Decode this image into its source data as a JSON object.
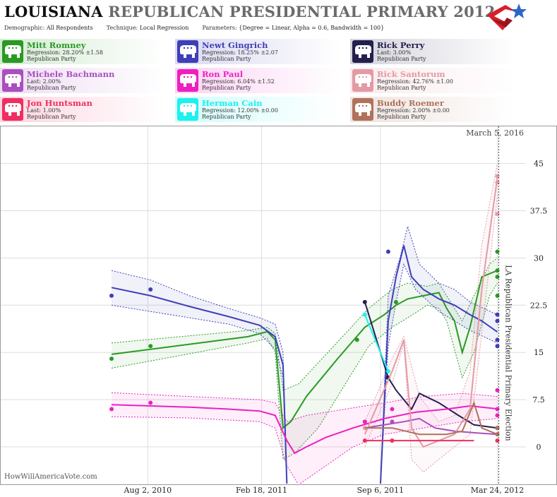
{
  "header": {
    "state": "LOUISIANA",
    "title_rest": "REPUBLICAN PRESIDENTIAL PRIMARY 2012",
    "demographic_label": "Demographic:",
    "demographic_value": "All Respondents",
    "technique_label": "Technique:",
    "technique_value": "Local Regression",
    "parameters_label": "Parameters:",
    "parameters_value": "{Degree = Linear, Alpha = 0.6, Bandwidth = 100}"
  },
  "candidates": [
    {
      "name": "Mitt Romney",
      "line2": "Regression: 28.20% ±1.58",
      "party": "Republican Party",
      "color": "#2a9a24"
    },
    {
      "name": "Newt Gingrich",
      "line2": "Regression: 18.25% ±2.07",
      "party": "Republican Party",
      "color": "#3f3fb8"
    },
    {
      "name": "Rick Perry",
      "line2": "Last: 3.00%",
      "party": "Republican Party",
      "color": "#23204d"
    },
    {
      "name": "Michele Bachmann",
      "line2": "Last: 2.00%",
      "party": "Republican Party",
      "color": "#a94fbf"
    },
    {
      "name": "Ron Paul",
      "line2": "Regression: 6.04% ±1.52",
      "party": "Republican Party",
      "color": "#ee1fc1"
    },
    {
      "name": "Rick Santorum",
      "line2": "Regression: 42.76% ±1.00",
      "party": "Republican Party",
      "color": "#e49aa4"
    },
    {
      "name": "Jon Huntsman",
      "line2": "Last: 1.00%",
      "party": "Republican Party",
      "color": "#ef2e62"
    },
    {
      "name": "Herman Cain",
      "line2": "Regression: 12.00% ±0.00",
      "party": "Republican Party",
      "color": "#1ef0ee"
    },
    {
      "name": "Buddy Roemer",
      "line2": "Regression: 2.00% ±0.00",
      "party": "Republican Party",
      "color": "#b0725a"
    }
  ],
  "watermark": "HowWillAmericaVote.com",
  "chart_data": {
    "type": "line",
    "x_ticks": [
      "Aug 2, 2010",
      "Feb 18, 2011",
      "Sep 6, 2011",
      "Mar 24, 2012"
    ],
    "y_ticks": [
      "0",
      "7.5",
      "15",
      "22.5",
      "30",
      "37.5",
      "45"
    ],
    "ylim": [
      -6,
      50
    ],
    "today_label": "March 5, 2016",
    "election_label": "LA Republican Presidential Primary Election",
    "series": [
      {
        "name": "Mitt Romney",
        "color": "#2a9a24",
        "points": [
          [
            0.0,
            14
          ],
          [
            0.1,
            16
          ],
          [
            0.73,
            23
          ],
          [
            0.63,
            17
          ],
          [
            0.99,
            28
          ],
          [
            0.99,
            31
          ],
          [
            0.99,
            27
          ],
          [
            0.99,
            24
          ]
        ],
        "line": [
          [
            0,
            14.7
          ],
          [
            0.35,
            17.5
          ],
          [
            0.4,
            18.3
          ],
          [
            0.42,
            17
          ],
          [
            0.44,
            3
          ],
          [
            0.46,
            4
          ],
          [
            0.5,
            8
          ],
          [
            0.58,
            14
          ],
          [
            0.65,
            19
          ],
          [
            0.7,
            21
          ],
          [
            0.73,
            22.5
          ],
          [
            0.76,
            23.5
          ],
          [
            0.8,
            24
          ],
          [
            0.84,
            24.5
          ],
          [
            0.86,
            22
          ],
          [
            0.88,
            20
          ],
          [
            0.9,
            15
          ],
          [
            0.92,
            19
          ],
          [
            0.95,
            27
          ],
          [
            0.99,
            28
          ]
        ],
        "upper": [
          [
            0,
            16.5
          ],
          [
            0.35,
            18.5
          ],
          [
            0.4,
            19
          ],
          [
            0.42,
            18
          ],
          [
            0.44,
            9
          ],
          [
            0.48,
            10
          ],
          [
            0.54,
            14
          ],
          [
            0.6,
            18
          ],
          [
            0.66,
            22
          ],
          [
            0.72,
            25
          ],
          [
            0.76,
            26
          ],
          [
            0.81,
            25.5
          ],
          [
            0.84,
            26
          ],
          [
            0.86,
            24
          ],
          [
            0.9,
            20
          ],
          [
            0.93,
            24
          ],
          [
            0.97,
            29
          ],
          [
            0.99,
            30
          ]
        ],
        "lower": [
          [
            0,
            12.5
          ],
          [
            0.35,
            16.5
          ],
          [
            0.4,
            17.2
          ],
          [
            0.42,
            15
          ],
          [
            0.44,
            -2
          ],
          [
            0.47,
            -1
          ],
          [
            0.53,
            3
          ],
          [
            0.6,
            10
          ],
          [
            0.66,
            16
          ],
          [
            0.72,
            19
          ],
          [
            0.76,
            20.5
          ],
          [
            0.81,
            22.5
          ],
          [
            0.84,
            22
          ],
          [
            0.86,
            20
          ],
          [
            0.9,
            11
          ],
          [
            0.93,
            15
          ],
          [
            0.97,
            24
          ],
          [
            0.99,
            26
          ]
        ]
      },
      {
        "name": "Newt Gingrich",
        "color": "#3f3fb8",
        "points": [
          [
            0.0,
            24
          ],
          [
            0.1,
            25
          ],
          [
            0.71,
            31
          ],
          [
            0.99,
            21
          ],
          [
            0.99,
            20
          ],
          [
            0.99,
            17
          ],
          [
            0.99,
            16
          ]
        ],
        "line": [
          [
            0,
            25.3
          ],
          [
            0.1,
            24
          ],
          [
            0.2,
            22.3
          ],
          [
            0.3,
            20.7
          ],
          [
            0.38,
            19.3
          ],
          [
            0.42,
            17.5
          ],
          [
            0.44,
            13
          ],
          [
            0.45,
            -6
          ],
          [
            0.69,
            -6
          ],
          [
            0.71,
            20
          ],
          [
            0.73,
            27
          ],
          [
            0.75,
            32
          ],
          [
            0.77,
            27
          ],
          [
            0.8,
            25
          ],
          [
            0.84,
            23.5
          ],
          [
            0.88,
            22.5
          ],
          [
            0.92,
            21
          ],
          [
            0.95,
            20
          ],
          [
            0.99,
            18.25
          ]
        ],
        "upper": [
          [
            0,
            28
          ],
          [
            0.1,
            26.5
          ],
          [
            0.2,
            24
          ],
          [
            0.3,
            22
          ],
          [
            0.38,
            20.5
          ],
          [
            0.42,
            19.5
          ],
          [
            0.44,
            15
          ],
          [
            0.45,
            -6
          ],
          [
            0.69,
            -6
          ],
          [
            0.71,
            24
          ],
          [
            0.74,
            30
          ],
          [
            0.76,
            35
          ],
          [
            0.79,
            29
          ],
          [
            0.84,
            26
          ],
          [
            0.88,
            25
          ],
          [
            0.92,
            23
          ],
          [
            0.99,
            21
          ]
        ],
        "lower": [
          [
            0,
            22.5
          ],
          [
            0.1,
            21.5
          ],
          [
            0.2,
            20.5
          ],
          [
            0.3,
            19.5
          ],
          [
            0.38,
            18
          ],
          [
            0.42,
            15.5
          ],
          [
            0.44,
            11
          ],
          [
            0.45,
            -6
          ],
          [
            0.69,
            -6
          ],
          [
            0.71,
            16
          ],
          [
            0.73,
            23
          ],
          [
            0.75,
            29
          ],
          [
            0.78,
            25
          ],
          [
            0.84,
            21.5
          ],
          [
            0.88,
            20
          ],
          [
            0.92,
            18.5
          ],
          [
            0.99,
            16.5
          ]
        ]
      },
      {
        "name": "Rick Perry",
        "color": "#23204d",
        "points": [
          [
            0.65,
            23
          ],
          [
            0.71,
            11
          ],
          [
            0.99,
            3
          ]
        ],
        "line": [
          [
            0.65,
            23
          ],
          [
            0.71,
            11
          ],
          [
            0.73,
            9
          ],
          [
            0.77,
            6
          ],
          [
            0.79,
            8.5
          ],
          [
            0.84,
            7
          ],
          [
            0.89,
            5
          ],
          [
            0.93,
            3.5
          ],
          [
            0.99,
            3
          ]
        ]
      },
      {
        "name": "Michele Bachmann",
        "color": "#a94fbf",
        "points": [
          [
            0.65,
            4
          ],
          [
            0.72,
            4
          ],
          [
            0.99,
            2
          ]
        ],
        "line": [
          [
            0.65,
            3
          ],
          [
            0.7,
            3.5
          ],
          [
            0.75,
            4
          ],
          [
            0.79,
            4.5
          ],
          [
            0.83,
            3
          ],
          [
            0.88,
            2.5
          ],
          [
            0.94,
            2.2
          ],
          [
            0.99,
            2
          ]
        ]
      },
      {
        "name": "Ron Paul",
        "color": "#ee1fc1",
        "points": [
          [
            0.0,
            6
          ],
          [
            0.1,
            7
          ],
          [
            0.65,
            4
          ],
          [
            0.72,
            6
          ],
          [
            0.99,
            9
          ],
          [
            0.99,
            6
          ],
          [
            0.99,
            5
          ]
        ],
        "line": [
          [
            0,
            6.7
          ],
          [
            0.1,
            6.5
          ],
          [
            0.2,
            6.3
          ],
          [
            0.3,
            6
          ],
          [
            0.38,
            5.7
          ],
          [
            0.42,
            5
          ],
          [
            0.45,
            1
          ],
          [
            0.47,
            -1
          ],
          [
            0.5,
            0
          ],
          [
            0.55,
            1.5
          ],
          [
            0.62,
            3
          ],
          [
            0.7,
            4.5
          ],
          [
            0.78,
            5.5
          ],
          [
            0.86,
            6
          ],
          [
            0.92,
            6.5
          ],
          [
            0.99,
            6.04
          ]
        ],
        "upper": [
          [
            0,
            8.6
          ],
          [
            0.2,
            8
          ],
          [
            0.38,
            7.5
          ],
          [
            0.42,
            7
          ],
          [
            0.45,
            4
          ],
          [
            0.5,
            5
          ],
          [
            0.6,
            6
          ],
          [
            0.7,
            7
          ],
          [
            0.8,
            8
          ],
          [
            0.9,
            8.5
          ],
          [
            0.99,
            8
          ]
        ],
        "lower": [
          [
            0,
            4.8
          ],
          [
            0.2,
            4.6
          ],
          [
            0.38,
            4
          ],
          [
            0.42,
            3
          ],
          [
            0.45,
            -3
          ],
          [
            0.48,
            -6
          ],
          [
            0.55,
            -3
          ],
          [
            0.62,
            0
          ],
          [
            0.7,
            2
          ],
          [
            0.8,
            3
          ],
          [
            0.9,
            4
          ],
          [
            0.99,
            4.5
          ]
        ]
      },
      {
        "name": "Rick Santorum",
        "color": "#e49aa4",
        "points": [
          [
            0.65,
            3
          ],
          [
            0.72,
            1
          ],
          [
            0.99,
            37
          ],
          [
            0.99,
            42
          ],
          [
            0.99,
            43
          ]
        ],
        "line": [
          [
            0.65,
            2
          ],
          [
            0.72,
            12
          ],
          [
            0.75,
            17
          ],
          [
            0.77,
            3
          ],
          [
            0.8,
            0
          ],
          [
            0.84,
            1
          ],
          [
            0.88,
            2
          ],
          [
            0.92,
            6
          ],
          [
            0.95,
            25
          ],
          [
            0.99,
            42.76
          ]
        ],
        "upper": [
          [
            0.65,
            4
          ],
          [
            0.72,
            14
          ],
          [
            0.75,
            17.5
          ],
          [
            0.79,
            8
          ],
          [
            0.84,
            4
          ],
          [
            0.88,
            5
          ],
          [
            0.92,
            12
          ],
          [
            0.95,
            32
          ],
          [
            0.99,
            45
          ]
        ],
        "lower": [
          [
            0.65,
            0
          ],
          [
            0.72,
            10
          ],
          [
            0.75,
            16.5
          ],
          [
            0.77,
            -2
          ],
          [
            0.8,
            -4
          ],
          [
            0.84,
            -2
          ],
          [
            0.88,
            0
          ],
          [
            0.92,
            2
          ],
          [
            0.95,
            18
          ],
          [
            0.99,
            40
          ]
        ]
      },
      {
        "name": "Jon Huntsman",
        "color": "#ef2e62",
        "points": [
          [
            0.65,
            1
          ],
          [
            0.72,
            1
          ],
          [
            0.99,
            1
          ]
        ],
        "line": [
          [
            0.65,
            1
          ],
          [
            0.93,
            1
          ]
        ]
      },
      {
        "name": "Herman Cain",
        "color": "#1ef0ee",
        "points": [
          [
            0.65,
            21
          ],
          [
            0.71,
            12
          ]
        ],
        "line": [
          [
            0.65,
            21
          ],
          [
            0.71,
            12
          ]
        ]
      },
      {
        "name": "Buddy Roemer",
        "color": "#b0725a",
        "points": [
          [
            0.99,
            3
          ],
          [
            0.99,
            2
          ]
        ],
        "line": [
          [
            0.65,
            3
          ],
          [
            0.72,
            3
          ],
          [
            0.79,
            2
          ],
          [
            0.86,
            2
          ],
          [
            0.9,
            2.5
          ],
          [
            0.93,
            7
          ],
          [
            0.95,
            3
          ],
          [
            0.99,
            2
          ]
        ]
      }
    ]
  }
}
